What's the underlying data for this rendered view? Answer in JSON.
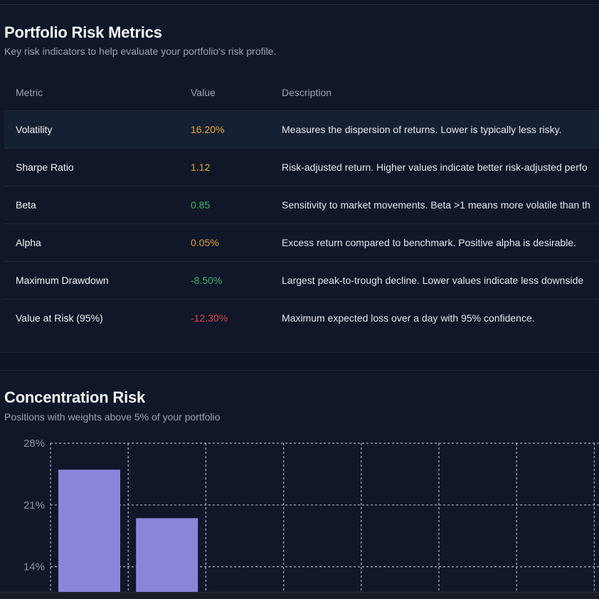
{
  "risk_metrics": {
    "title": "Portfolio Risk Metrics",
    "subtitle": "Key risk indicators to help evaluate your portfolio's risk profile.",
    "columns": [
      "Metric",
      "Value",
      "Description"
    ],
    "rows": [
      {
        "metric": "Volatility",
        "value": "16.20%",
        "value_color": "#e5a42d",
        "description": "Measures the dispersion of returns. Lower is typically less risky."
      },
      {
        "metric": "Sharpe Ratio",
        "value": "1.12",
        "value_color": "#e5a42d",
        "description": "Risk-adjusted return. Higher values indicate better risk-adjusted perfo"
      },
      {
        "metric": "Beta",
        "value": "0.85",
        "value_color": "#3fb56f",
        "description": "Sensitivity to market movements. Beta >1 means more volatile than th"
      },
      {
        "metric": "Alpha",
        "value": "0.05%",
        "value_color": "#e5a42d",
        "description": "Excess return compared to benchmark. Positive alpha is desirable."
      },
      {
        "metric": "Maximum Drawdown",
        "value": "-8.50%",
        "value_color": "#3fb56f",
        "description": "Largest peak-to-trough decline. Lower values indicate less downside"
      },
      {
        "metric": "Value at Risk (95%)",
        "value": "-12.30%",
        "value_color": "#e0424b",
        "description": "Maximum expected loss over a day with 95% confidence."
      }
    ]
  },
  "concentration": {
    "title": "Concentration Risk",
    "subtitle": "Positions with weights above 5% of your portfolio"
  },
  "chart_data": {
    "type": "bar",
    "title": "",
    "xlabel": "",
    "ylabel": "",
    "ylim": [
      0,
      28
    ],
    "y_ticks": [
      "28%",
      "21%",
      "14%"
    ],
    "y_tick_values": [
      28,
      21,
      14
    ],
    "values": [
      25,
      19.5
    ],
    "bar_color": "#8b85d8",
    "grid": true
  }
}
